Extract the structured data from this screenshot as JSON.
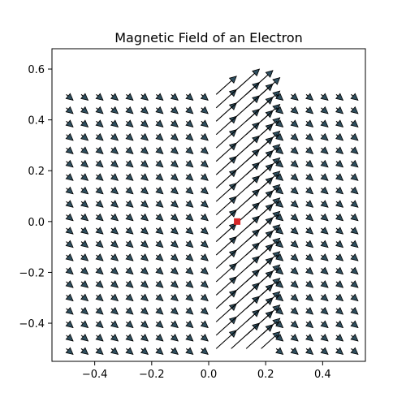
{
  "chart_data": {
    "type": "quiver",
    "title": "Magnetic Field of an Electron",
    "xlabel": "",
    "ylabel": "",
    "xlim": [
      -0.55,
      0.55
    ],
    "ylim": [
      -0.55,
      0.68
    ],
    "x_ticks": [
      -0.4,
      -0.2,
      0.0,
      0.2,
      0.4
    ],
    "x_tick_labels": [
      "−0.4",
      "−0.2",
      "0.0",
      "0.2",
      "0.4"
    ],
    "y_ticks": [
      -0.4,
      -0.2,
      0.0,
      0.2,
      0.4,
      0.6
    ],
    "y_tick_labels": [
      "−0.4",
      "−0.2",
      "0.0",
      "0.2",
      "0.4",
      "0.6"
    ],
    "grid": false,
    "legend": "none",
    "electron_position": [
      0.1,
      0.0
    ],
    "electron_color": "#d62728",
    "arrow_fill": "#2f4f5f",
    "arrow_edge": "#000000",
    "field_grid": {
      "x_range": [
        -0.5,
        0.5
      ],
      "y_range": [
        -0.5,
        0.5
      ],
      "columns": 20,
      "rows": 20,
      "note_direction": "arrows near the electron column point up-right, others point down-right"
    }
  }
}
